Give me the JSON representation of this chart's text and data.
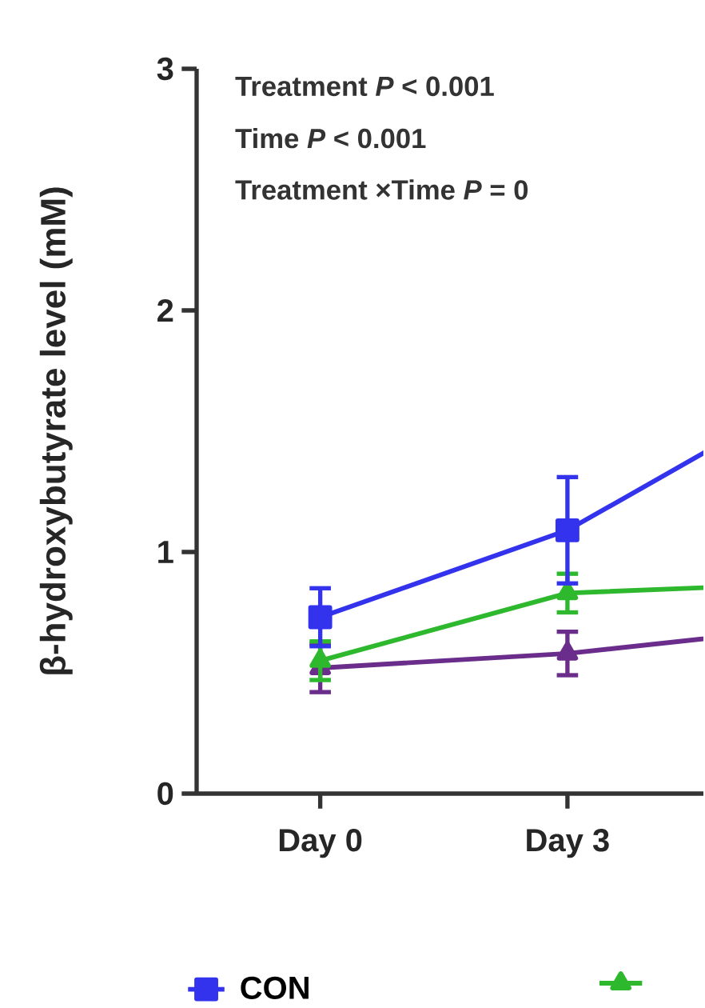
{
  "chart_data": {
    "type": "line",
    "ylabel": "β-hydroxybutyrate level (mM)",
    "annotations": [
      "Treatment *P* < 0.001",
      "Time *P* < 0.001",
      "Treatment ×Time *P* = 0"
    ],
    "categories": [
      "Day 0",
      "Day 3",
      null
    ],
    "ylim": [
      0,
      3
    ],
    "yticks": [
      0,
      1,
      2,
      3
    ],
    "grid": false,
    "legend": "bottom",
    "line_style": "solid",
    "series": [
      {
        "name": "CON",
        "color": "#3333ee",
        "marker": "square",
        "values": [
          0.73,
          1.09,
          1.67
        ],
        "errors": [
          0.12,
          0.22,
          null
        ]
      },
      {
        "color": "#2eb82e",
        "marker": "triangle",
        "values": [
          0.55,
          0.83,
          0.87
        ],
        "errors": [
          0.08,
          0.08,
          null
        ]
      },
      {
        "color": "#6b2d8b",
        "marker": "triangle",
        "values": [
          0.52,
          0.58,
          0.69
        ],
        "errors": [
          0.1,
          0.09,
          null
        ]
      }
    ]
  }
}
